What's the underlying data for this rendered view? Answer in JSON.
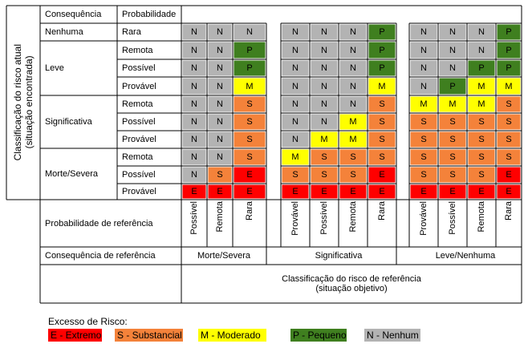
{
  "headers": {
    "consequence": "Consequência",
    "probability": "Probabilidade",
    "current_risk": "Classificação do risco atual (situação encontrada)",
    "ref_probability": "Probabilidade de referência",
    "ref_consequence": "Consequência de referência",
    "ref_class_line1": "Classificação do risco de referência",
    "ref_class_line2": "(situação objetivo)"
  },
  "rows": [
    {
      "consequence": "Nenhuma",
      "probability": "Rara",
      "cells": [
        "N",
        "N",
        "N",
        "N",
        "N",
        "N",
        "P",
        "N",
        "N",
        "N",
        "P"
      ]
    },
    {
      "consequence": "Leve",
      "probability": "Remota",
      "cells": [
        "N",
        "N",
        "P",
        "N",
        "N",
        "N",
        "P",
        "N",
        "N",
        "N",
        "P"
      ]
    },
    {
      "consequence": "",
      "probability": "Possível",
      "cells": [
        "N",
        "N",
        "P",
        "N",
        "N",
        "N",
        "P",
        "N",
        "N",
        "P",
        "P"
      ]
    },
    {
      "consequence": "",
      "probability": "Provável",
      "cells": [
        "N",
        "N",
        "M",
        "N",
        "N",
        "N",
        "M",
        "N",
        "P",
        "M",
        "M"
      ]
    },
    {
      "consequence": "Significativa",
      "probability": "Remota",
      "cells": [
        "N",
        "N",
        "S",
        "N",
        "N",
        "N",
        "S",
        "M",
        "M",
        "M",
        "S"
      ]
    },
    {
      "consequence": "",
      "probability": "Possível",
      "cells": [
        "N",
        "N",
        "S",
        "N",
        "N",
        "M",
        "S",
        "S",
        "S",
        "S",
        "S"
      ]
    },
    {
      "consequence": "",
      "probability": "Provável",
      "cells": [
        "N",
        "N",
        "S",
        "N",
        "M",
        "M",
        "S",
        "S",
        "S",
        "S",
        "S"
      ]
    },
    {
      "consequence": "Morte/Severa",
      "probability": "Remota",
      "cells": [
        "N",
        "N",
        "S",
        "M",
        "S",
        "S",
        "S",
        "S",
        "S",
        "S",
        "S"
      ]
    },
    {
      "consequence": "",
      "probability": "Possível",
      "cells": [
        "N",
        "S",
        "E",
        "S",
        "S",
        "S",
        "E",
        "S",
        "S",
        "S",
        "E"
      ]
    },
    {
      "consequence": "",
      "probability": "Provável",
      "cells": [
        "E",
        "E",
        "E",
        "E",
        "E",
        "E",
        "E",
        "E",
        "E",
        "E",
        "E"
      ]
    }
  ],
  "ref_columns": [
    "Possível",
    "Remota",
    "Rara",
    "Provável",
    "Possível",
    "Remota",
    "Rara",
    "Provável",
    "Possível",
    "Remota",
    "Rara"
  ],
  "ref_groups": [
    "Morte/Severa",
    "Significativa",
    "Leve/Nenhuma"
  ],
  "legend": {
    "title": "Excesso de Risco:",
    "items": [
      {
        "code": "E",
        "label": "E - Extremo"
      },
      {
        "code": "S",
        "label": "S - Substancial"
      },
      {
        "code": "M",
        "label": "M - Moderado"
      },
      {
        "code": "P",
        "label": "P - Pequeno"
      },
      {
        "code": "N",
        "label": "N - Nenhum"
      }
    ]
  },
  "colors": {
    "E": "#ff0000",
    "S": "#f4823a",
    "M": "#ffff00",
    "P": "#3f7f1f",
    "N": "#b3b3b3",
    "border": "#000000"
  }
}
